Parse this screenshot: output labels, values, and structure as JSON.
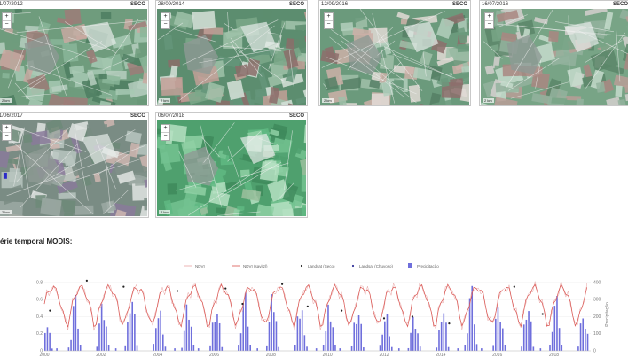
{
  "tiles": [
    {
      "date": "1/07/2012",
      "tag": "SECO",
      "variant": 0
    },
    {
      "date": "28/09/2014",
      "tag": "SECO",
      "variant": 1
    },
    {
      "date": "12/09/2016",
      "tag": "SECO",
      "variant": 2
    },
    {
      "date": "16/07/2016",
      "tag": "SECO",
      "variant": 3
    },
    {
      "date": "1/06/2017",
      "tag": "SECO",
      "variant": 4
    },
    {
      "date": "06/07/2018",
      "tag": "SECO",
      "variant": 5
    }
  ],
  "zoom": {
    "in_label": "+",
    "out_label": "−"
  },
  "scale_label": "2 km",
  "series_title": "érie temporal MODIS:",
  "chart_data": {
    "type": "line",
    "legend": [
      "NDVI",
      "NDVI (savitzl)",
      "Landsat (Seco)",
      "Landsat (Chuvoso)",
      "Precipitação"
    ],
    "xlabel": "",
    "ylabel_left": "NDVI",
    "ylabel_right": "Precipitação",
    "x_ticks": [
      "2000",
      "2002",
      "2004",
      "2006",
      "2008",
      "2010",
      "2012",
      "2014",
      "2016",
      "2018"
    ],
    "y_ticks_left": [
      "0",
      "0.2",
      "0.4",
      "0.6",
      "0.8"
    ],
    "y_ticks_right": [
      "0",
      "100",
      "200",
      "300",
      "400"
    ],
    "xlim": [
      2000,
      2019.3
    ],
    "ylim_left": [
      0,
      0.85
    ],
    "ylim_right": [
      0,
      425
    ],
    "colors": {
      "ndvi": "#e8a4a4",
      "ndvi_savitzky": "#d9534f",
      "landsat_seco": "#222222",
      "landsat_chuvoso": "#333399",
      "precip": "#6f6fdc"
    },
    "landsat_points": [
      {
        "x": 2000.2,
        "y": 0.47
      },
      {
        "x": 2001.5,
        "y": 0.82
      },
      {
        "x": 2002.8,
        "y": 0.75
      },
      {
        "x": 2004.7,
        "y": 0.7
      },
      {
        "x": 2006.4,
        "y": 0.73
      },
      {
        "x": 2007.0,
        "y": 0.55
      },
      {
        "x": 2008.4,
        "y": 0.78
      },
      {
        "x": 2009.3,
        "y": 0.52
      },
      {
        "x": 2010.5,
        "y": 0.47
      },
      {
        "x": 2012.0,
        "y": 0.38
      },
      {
        "x": 2013.0,
        "y": 0.4
      },
      {
        "x": 2014.3,
        "y": 0.32
      },
      {
        "x": 2016.6,
        "y": 0.75
      },
      {
        "x": 2017.6,
        "y": 0.43
      }
    ]
  }
}
